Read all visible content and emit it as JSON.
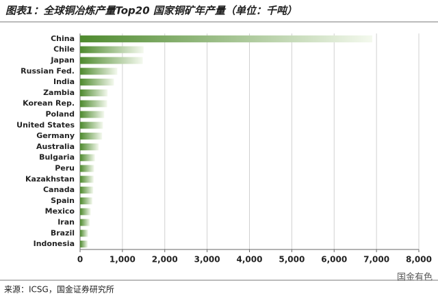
{
  "chart_data": {
    "type": "hbar",
    "title": "图表1：全球铜冶炼产量Top20 国家铜矿年产量（单位：千吨）",
    "categories": [
      "China",
      "Chile",
      "Japan",
      "Russian Fed.",
      "India",
      "Zambia",
      "Korean Rep.",
      "Poland",
      "United States",
      "Germany",
      "Australia",
      "Bulgaria",
      "Peru",
      "Kazakhstan",
      "Canada",
      "Spain",
      "Mexico",
      "Iran",
      "Brazil",
      "Indonesia"
    ],
    "values": [
      6900,
      1500,
      1480,
      880,
      800,
      650,
      640,
      570,
      540,
      520,
      440,
      350,
      330,
      320,
      310,
      290,
      250,
      230,
      190,
      180
    ],
    "color": "#4e8a2e",
    "xlim": [
      0,
      8000
    ],
    "xticks": [
      0,
      {
        "value": 1000,
        "label": "1,000"
      },
      {
        "value": 2000,
        "label": "2,000"
      },
      {
        "value": 3000,
        "label": "3,000"
      },
      {
        "value": 4000,
        "label": "4,000"
      },
      {
        "value": 5000,
        "label": "5,000"
      },
      {
        "value": 6000,
        "label": "6,000"
      },
      {
        "value": 7000,
        "label": "7,000"
      },
      {
        "value": 8000,
        "label": "8,000"
      }
    ],
    "grid": true,
    "source": "来源：ICSG，国金证券研究所",
    "watermark": "国金有色"
  }
}
